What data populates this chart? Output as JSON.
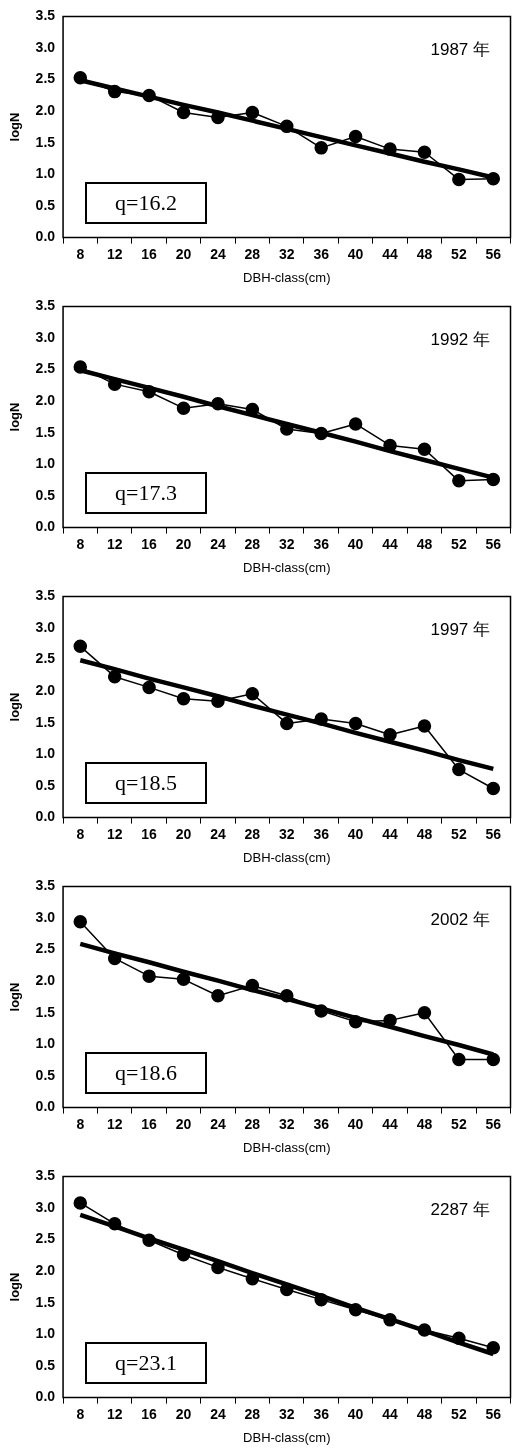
{
  "chart_data": [
    {
      "type": "line",
      "categories": [
        "8",
        "12",
        "16",
        "20",
        "24",
        "28",
        "32",
        "36",
        "40",
        "44",
        "48",
        "52",
        "56"
      ],
      "xlabel": "DBH-class(cm)",
      "ylabel": "logN",
      "ylim": [
        0,
        3.5
      ],
      "yticks": [
        {
          "value": 0,
          "label": "0.0"
        },
        {
          "value": 0.5,
          "label": "0.5"
        },
        {
          "value": 1,
          "label": "1.0"
        },
        {
          "value": 1.5,
          "label": "1.5"
        },
        {
          "value": 2,
          "label": "2.0"
        },
        {
          "value": 2.5,
          "label": "2.5"
        },
        {
          "value": 3,
          "label": "3.0"
        },
        {
          "value": 3.5,
          "label": "3.5"
        }
      ],
      "marker": "circle",
      "annotations": [
        "1987 年",
        "q=16.2"
      ],
      "series": [
        {
          "color": "#000000",
          "values": [
            2.53,
            2.31,
            2.25,
            1.98,
            1.9,
            1.98,
            1.76,
            1.42,
            1.6,
            1.4,
            1.35,
            0.92,
            0.93
          ]
        },
        {
          "type": "line",
          "color": "#000000",
          "marker": "none",
          "values": [
            2.49,
            2.36,
            2.23,
            2.1,
            1.98,
            1.85,
            1.72,
            1.59,
            1.46,
            1.33,
            1.2,
            1.08,
            0.95
          ]
        }
      ]
    },
    {
      "type": "line",
      "categories": [
        "8",
        "12",
        "16",
        "20",
        "24",
        "28",
        "32",
        "36",
        "40",
        "44",
        "48",
        "52",
        "56"
      ],
      "xlabel": "DBH-class(cm)",
      "ylabel": "logN",
      "ylim": [
        0,
        3.5
      ],
      "yticks": [
        {
          "value": 0,
          "label": "0.0"
        },
        {
          "value": 0.5,
          "label": "0.5"
        },
        {
          "value": 1,
          "label": "1.0"
        },
        {
          "value": 1.5,
          "label": "1.5"
        },
        {
          "value": 2,
          "label": "2.0"
        },
        {
          "value": 2.5,
          "label": "2.5"
        },
        {
          "value": 3,
          "label": "3.0"
        },
        {
          "value": 3.5,
          "label": "3.5"
        }
      ],
      "marker": "circle",
      "annotations": [
        "1992 年",
        "q=17.3"
      ],
      "series": [
        {
          "color": "#000000",
          "values": [
            2.54,
            2.27,
            2.15,
            1.89,
            1.96,
            1.87,
            1.56,
            1.49,
            1.64,
            1.3,
            1.24,
            0.74,
            0.76
          ]
        },
        {
          "type": "line",
          "color": "#000000",
          "marker": "none",
          "values": [
            2.49,
            2.35,
            2.21,
            2.07,
            1.92,
            1.78,
            1.64,
            1.5,
            1.36,
            1.21,
            1.07,
            0.93,
            0.79
          ]
        }
      ]
    },
    {
      "type": "line",
      "categories": [
        "8",
        "12",
        "16",
        "20",
        "24",
        "28",
        "32",
        "36",
        "40",
        "44",
        "48",
        "52",
        "56"
      ],
      "xlabel": "DBH-class(cm)",
      "ylabel": "logN",
      "ylim": [
        0,
        3.5
      ],
      "yticks": [
        {
          "value": 0,
          "label": "0.0"
        },
        {
          "value": 0.5,
          "label": "0.5"
        },
        {
          "value": 1,
          "label": "1.0"
        },
        {
          "value": 1.5,
          "label": "1.5"
        },
        {
          "value": 2,
          "label": "2.0"
        },
        {
          "value": 2.5,
          "label": "2.5"
        },
        {
          "value": 3,
          "label": "3.0"
        },
        {
          "value": 3.5,
          "label": "3.5"
        }
      ],
      "marker": "circle",
      "annotations": [
        "1997 年",
        "q=18.5"
      ],
      "series": [
        {
          "color": "#000000",
          "values": [
            2.71,
            2.23,
            2.06,
            1.88,
            1.84,
            1.96,
            1.49,
            1.56,
            1.49,
            1.31,
            1.45,
            0.76,
            0.46
          ]
        },
        {
          "type": "line",
          "color": "#000000",
          "marker": "none",
          "values": [
            2.49,
            2.35,
            2.2,
            2.06,
            1.92,
            1.77,
            1.63,
            1.49,
            1.34,
            1.2,
            1.06,
            0.91,
            0.77
          ]
        }
      ]
    },
    {
      "type": "line",
      "categories": [
        "8",
        "12",
        "16",
        "20",
        "24",
        "28",
        "32",
        "36",
        "40",
        "44",
        "48",
        "52",
        "56"
      ],
      "xlabel": "DBH-class(cm)",
      "ylabel": "logN",
      "ylim": [
        0,
        3.5
      ],
      "yticks": [
        {
          "value": 0,
          "label": "0.0"
        },
        {
          "value": 0.5,
          "label": "0.5"
        },
        {
          "value": 1,
          "label": "1.0"
        },
        {
          "value": 1.5,
          "label": "1.5"
        },
        {
          "value": 2,
          "label": "2.0"
        },
        {
          "value": 2.5,
          "label": "2.5"
        },
        {
          "value": 3,
          "label": "3.0"
        },
        {
          "value": 3.5,
          "label": "3.5"
        }
      ],
      "marker": "circle",
      "annotations": [
        "2002 年",
        "q=18.6"
      ],
      "series": [
        {
          "color": "#000000",
          "values": [
            2.94,
            2.36,
            2.08,
            2.03,
            1.77,
            1.93,
            1.77,
            1.53,
            1.36,
            1.38,
            1.5,
            0.76,
            0.76
          ]
        },
        {
          "type": "line",
          "color": "#000000",
          "marker": "none",
          "values": [
            2.59,
            2.44,
            2.3,
            2.15,
            2.01,
            1.86,
            1.72,
            1.57,
            1.42,
            1.28,
            1.13,
            0.99,
            0.84
          ]
        }
      ]
    },
    {
      "type": "line",
      "categories": [
        "8",
        "12",
        "16",
        "20",
        "24",
        "28",
        "32",
        "36",
        "40",
        "44",
        "48",
        "52",
        "56"
      ],
      "xlabel": "DBH-class(cm)",
      "ylabel": "logN",
      "ylim": [
        0,
        3.5
      ],
      "yticks": [
        {
          "value": 0,
          "label": "0.0"
        },
        {
          "value": 0.5,
          "label": "0.5"
        },
        {
          "value": 1,
          "label": "1.0"
        },
        {
          "value": 1.5,
          "label": "1.5"
        },
        {
          "value": 2,
          "label": "2.0"
        },
        {
          "value": 2.5,
          "label": "2.5"
        },
        {
          "value": 3,
          "label": "3.0"
        },
        {
          "value": 3.5,
          "label": "3.5"
        }
      ],
      "marker": "circle",
      "annotations": [
        "2287 年",
        "q=23.1"
      ],
      "series": [
        {
          "color": "#000000",
          "values": [
            3.08,
            2.75,
            2.49,
            2.26,
            2.06,
            1.88,
            1.71,
            1.55,
            1.39,
            1.23,
            1.07,
            0.94,
            0.79
          ]
        },
        {
          "type": "line",
          "color": "#000000",
          "marker": "none",
          "values": [
            2.89,
            2.71,
            2.52,
            2.34,
            2.16,
            1.97,
            1.79,
            1.61,
            1.42,
            1.24,
            1.06,
            0.87,
            0.69
          ]
        }
      ]
    }
  ]
}
